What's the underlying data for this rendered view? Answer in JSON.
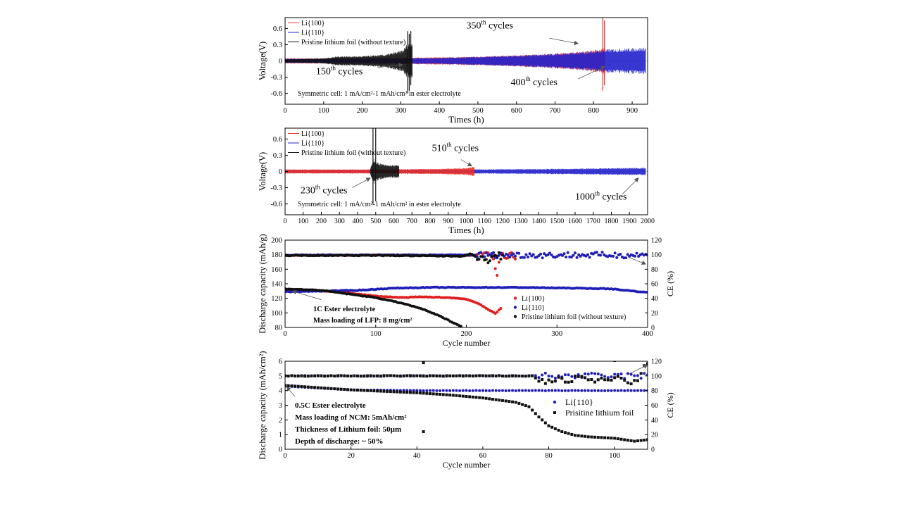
{
  "chart_data": [
    {
      "id": "a",
      "type": "line",
      "xlabel": "Times (h)",
      "ylabel": "Voltage(V)",
      "xlim": [
        0,
        940
      ],
      "ylim": [
        -0.8,
        0.8
      ],
      "xticks": [
        0,
        100,
        200,
        300,
        400,
        500,
        600,
        700,
        800,
        900
      ],
      "yticks": [
        -0.6,
        -0.3,
        0.0,
        0.3,
        0.6
      ],
      "legend": [
        "Li{100}",
        "Li{110}",
        "Pristine lithium foil (without texture)"
      ],
      "legend_position": "top-left",
      "series": [
        {
          "name": "Li{100}",
          "color": "#e8302a",
          "x_end": 830,
          "env": [
            [
              0,
              0.05
            ],
            [
              100,
              0.05
            ],
            [
              300,
              0.06
            ],
            [
              500,
              0.08
            ],
            [
              650,
              0.12
            ],
            [
              760,
              0.17
            ],
            [
              820,
              0.22
            ],
            [
              826,
              0.25
            ]
          ],
          "spikes": [
            [
              824,
              0.82,
              -0.55
            ],
            [
              828,
              0.75,
              -0.45
            ]
          ]
        },
        {
          "name": "Li{110}",
          "color": "#2222cc",
          "x_end": 935,
          "env": [
            [
              0,
              0.04
            ],
            [
              200,
              0.045
            ],
            [
              400,
              0.06
            ],
            [
              600,
              0.1
            ],
            [
              760,
              0.16
            ],
            [
              840,
              0.22
            ],
            [
              935,
              0.25
            ]
          ],
          "spikes": []
        },
        {
          "name": "Pristine lithium foil (without texture)",
          "color": "#111111",
          "x_end": 330,
          "env": [
            [
              0,
              0.03
            ],
            [
              100,
              0.05
            ],
            [
              140,
              0.09
            ],
            [
              200,
              0.09
            ],
            [
              260,
              0.12
            ],
            [
              305,
              0.2
            ],
            [
              315,
              0.3
            ],
            [
              330,
              0.38
            ]
          ],
          "spikes": [
            [
              318,
              0.55,
              -0.6
            ],
            [
              322,
              0.5,
              -0.55
            ],
            [
              326,
              0.55,
              -0.45
            ]
          ]
        }
      ],
      "annotations": [
        {
          "base": "350",
          "sup": "th",
          "tail": " cycles",
          "x": 470,
          "y": 0.6
        },
        {
          "base": "150",
          "sup": "th",
          "tail": " cycles",
          "x": 80,
          "y": -0.25
        },
        {
          "base": "400",
          "sup": "th",
          "tail": " cycles",
          "x": 585,
          "y": -0.45
        }
      ],
      "arrows": [
        {
          "x1": 685,
          "y1": 0.42,
          "x2": 760,
          "y2": 0.32
        },
        {
          "x1": 240,
          "y1": -0.12,
          "x2": 305,
          "y2": -0.07
        },
        {
          "x1": 760,
          "y1": -0.33,
          "x2": 830,
          "y2": -0.1
        }
      ],
      "note": "Symmetric cell: 1 mA/cm²-1 mAh/cm² in ester electrolyte"
    },
    {
      "id": "b",
      "type": "line",
      "xlabel": "Times (h)",
      "ylabel": "Voltage(V)",
      "xlim": [
        0,
        2000
      ],
      "ylim": [
        -0.8,
        0.8
      ],
      "xticks": [
        0,
        100,
        200,
        300,
        400,
        500,
        600,
        700,
        800,
        900,
        1000,
        1100,
        1200,
        1300,
        1400,
        1500,
        1600,
        1700,
        1800,
        1900,
        2000
      ],
      "yticks": [
        -0.6,
        -0.3,
        0.0,
        0.3,
        0.6
      ],
      "legend": [
        "Li{100}",
        "Li{110}",
        "Pristine lithium foil (without texture)"
      ],
      "legend_position": "top-left",
      "series": [
        {
          "name": "Li{110}",
          "color": "#2222cc",
          "x_end": 1990,
          "env": [
            [
              0,
              0.03
            ],
            [
              600,
              0.035
            ],
            [
              1000,
              0.04
            ],
            [
              1500,
              0.05
            ],
            [
              1990,
              0.07
            ]
          ],
          "spikes": []
        },
        {
          "name": "Li{100}",
          "color": "#e8302a",
          "x_end": 1045,
          "env": [
            [
              0,
              0.04
            ],
            [
              500,
              0.04
            ],
            [
              850,
              0.05
            ],
            [
              1000,
              0.07
            ],
            [
              1040,
              0.09
            ]
          ],
          "spikes": []
        },
        {
          "name": "Pristine lithium foil (without texture)",
          "color": "#111111",
          "x_start": 470,
          "x_end": 630,
          "env": [
            [
              470,
              0.05
            ],
            [
              490,
              0.25
            ],
            [
              500,
              0.18
            ],
            [
              560,
              0.12
            ],
            [
              630,
              0.12
            ]
          ],
          "spikes": [
            [
              485,
              0.8,
              -0.6
            ],
            [
              500,
              0.8,
              -0.55
            ]
          ]
        }
      ],
      "annotations": [
        {
          "base": "510",
          "sup": "th",
          "tail": " cycles",
          "x": 810,
          "y": 0.38
        },
        {
          "base": "230",
          "sup": "th",
          "tail": " cycles",
          "x": 85,
          "y": -0.4
        },
        {
          "base": "1000",
          "sup": "th",
          "tail": " cycles",
          "x": 1600,
          "y": -0.52
        }
      ],
      "arrows": [
        {
          "x1": 970,
          "y1": 0.22,
          "x2": 1030,
          "y2": 0.1
        },
        {
          "x1": 370,
          "y1": -0.3,
          "x2": 470,
          "y2": -0.12
        },
        {
          "x1": 1860,
          "y1": -0.42,
          "x2": 1950,
          "y2": -0.12
        }
      ],
      "note": "Symmetric cell: 1 mA/cm²-1 mAh/cm² in ester electrolyte"
    },
    {
      "id": "c",
      "type": "scatter",
      "xlabel": "Cycle number",
      "ylabel": "Discharge capacity (mAh/g)",
      "y2label": "CE (%)",
      "xlim": [
        0,
        400
      ],
      "ylim": [
        80,
        200
      ],
      "y2lim": [
        0,
        120
      ],
      "xticks": [
        0,
        100,
        200,
        300,
        400
      ],
      "yticks": [
        80,
        100,
        120,
        140,
        160,
        180,
        200
      ],
      "y2ticks": [
        0,
        20,
        40,
        60,
        80,
        100,
        120
      ],
      "legend": [
        "Li{100}",
        "Li{110}",
        "Pristine lithium foil (without texture)"
      ],
      "legend_position": "bottom-right",
      "capacity": {
        "Li{100}": [
          [
            0,
            131
          ],
          [
            40,
            130
          ],
          [
            60,
            129
          ],
          [
            80,
            126
          ],
          [
            100,
            123
          ],
          [
            130,
            121
          ],
          [
            150,
            122
          ],
          [
            180,
            121
          ],
          [
            200,
            119
          ],
          [
            215,
            112
          ],
          [
            225,
            104
          ],
          [
            232,
            99
          ],
          [
            238,
            106
          ]
        ],
        "Li{110}": [
          [
            0,
            129
          ],
          [
            40,
            130
          ],
          [
            80,
            131
          ],
          [
            120,
            134
          ],
          [
            160,
            135
          ],
          [
            200,
            135
          ],
          [
            260,
            135
          ],
          [
            320,
            134
          ],
          [
            360,
            133
          ],
          [
            400,
            128
          ]
        ],
        "Pristine lithium foil (without texture)": [
          [
            0,
            133
          ],
          [
            40,
            131
          ],
          [
            70,
            126
          ],
          [
            100,
            121
          ],
          [
            130,
            113
          ],
          [
            150,
            106
          ],
          [
            170,
            96
          ],
          [
            185,
            87
          ],
          [
            195,
            81
          ]
        ]
      },
      "ce": {
        "Li{100}": [
          [
            0,
            99
          ],
          [
            100,
            99.5
          ],
          [
            200,
            99
          ],
          [
            225,
            100
          ],
          [
            230,
            95
          ],
          [
            235,
            90
          ],
          [
            240,
            102
          ],
          [
            245,
            96
          ],
          [
            250,
            104
          ],
          [
            255,
            90
          ],
          [
            234,
            70
          ]
        ],
        "Li{110}": [
          [
            0,
            99.5
          ],
          [
            100,
            99.5
          ],
          [
            200,
            99.5
          ],
          [
            300,
            99.5
          ],
          [
            400,
            99.5
          ]
        ],
        "Pristine lithium foil (without texture)": [
          [
            0,
            99
          ],
          [
            100,
            99
          ],
          [
            195,
            98
          ],
          [
            205,
            101
          ],
          [
            215,
            95
          ],
          [
            225,
            92
          ],
          [
            235,
            100
          ],
          [
            240,
            96
          ]
        ]
      },
      "colors": {
        "Li{100}": "#e02020",
        "Li{110}": "#1f1fb8",
        "Pristine lithium foil (without texture)": "#111111"
      },
      "notes": [
        "1C   Ester electrolyte",
        "Mass loading of LFP: 8 mg/cm²"
      ],
      "arrows": [
        {
          "axis": "y1",
          "x1": 40,
          "y1": 118,
          "x2": 8,
          "y2": 130
        },
        {
          "axis": "y2",
          "x1": 380,
          "y1": 96,
          "x2": 398,
          "y2": 87
        }
      ]
    },
    {
      "id": "d",
      "type": "scatter",
      "xlabel": "Cycle number",
      "ylabel": "Discharge capacity (mAh/cm²)",
      "y2label": "CE (%)",
      "xlim": [
        0,
        110
      ],
      "ylim": [
        0,
        6
      ],
      "y2lim": [
        0,
        120
      ],
      "xticks": [
        0,
        20,
        40,
        60,
        80,
        100
      ],
      "yticks": [
        0,
        1,
        2,
        3,
        4,
        5,
        6
      ],
      "y2ticks": [
        0,
        20,
        40,
        60,
        80,
        100,
        120
      ],
      "legend": [
        "Li{110}",
        "Prisitine lithium foil"
      ],
      "legend_position": "bottom-right",
      "capacity": {
        "Li{110}": [
          [
            0,
            4.3
          ],
          [
            20,
            4.05
          ],
          [
            40,
            4.0
          ],
          [
            60,
            4.0
          ],
          [
            80,
            4.0
          ],
          [
            100,
            4.0
          ],
          [
            110,
            4.0
          ]
        ],
        "Prisitine lithium foil": [
          [
            0,
            4.35
          ],
          [
            10,
            4.2
          ],
          [
            20,
            4.05
          ],
          [
            40,
            3.85
          ],
          [
            50,
            3.7
          ],
          [
            60,
            3.5
          ],
          [
            70,
            3.2
          ],
          [
            74,
            2.9
          ],
          [
            77,
            2.2
          ],
          [
            80,
            1.6
          ],
          [
            84,
            1.2
          ],
          [
            88,
            0.95
          ],
          [
            92,
            0.85
          ],
          [
            100,
            0.75
          ],
          [
            106,
            0.55
          ],
          [
            110,
            0.65
          ]
        ]
      },
      "ce": {
        "Li{110}": [
          [
            0,
            100
          ],
          [
            110,
            100
          ]
        ],
        "Prisitine lithium foil": [
          [
            0,
            100
          ],
          [
            75,
            100
          ],
          [
            78,
            92
          ],
          [
            82,
            95
          ],
          [
            86,
            94
          ],
          [
            90,
            98
          ],
          [
            94,
            93
          ],
          [
            98,
            95
          ],
          [
            102,
            97
          ],
          [
            106,
            90
          ],
          [
            110,
            117
          ]
        ]
      },
      "ce_outliers": [
        [
          42,
          118
        ],
        [
          42,
          24
        ],
        [
          100,
          121
        ]
      ],
      "colors": {
        "Li{110}": "#1f1fb8",
        "Prisitine lithium foil": "#111111"
      },
      "notes": [
        "0.5C Ester electrolyte",
        "Mass loading of NCM: 5mAh/cm²",
        "Thickness of Lithium foil: 50µm",
        "Depth of discharge: ~ 50%"
      ],
      "arrows": [
        {
          "axis": "y1",
          "x1": 3,
          "y1": 3.6,
          "x2": 0.5,
          "y2": 4.25
        },
        {
          "axis": "y2",
          "x1": 104,
          "y1": 102,
          "x2": 110,
          "y2": 115
        }
      ]
    }
  ]
}
